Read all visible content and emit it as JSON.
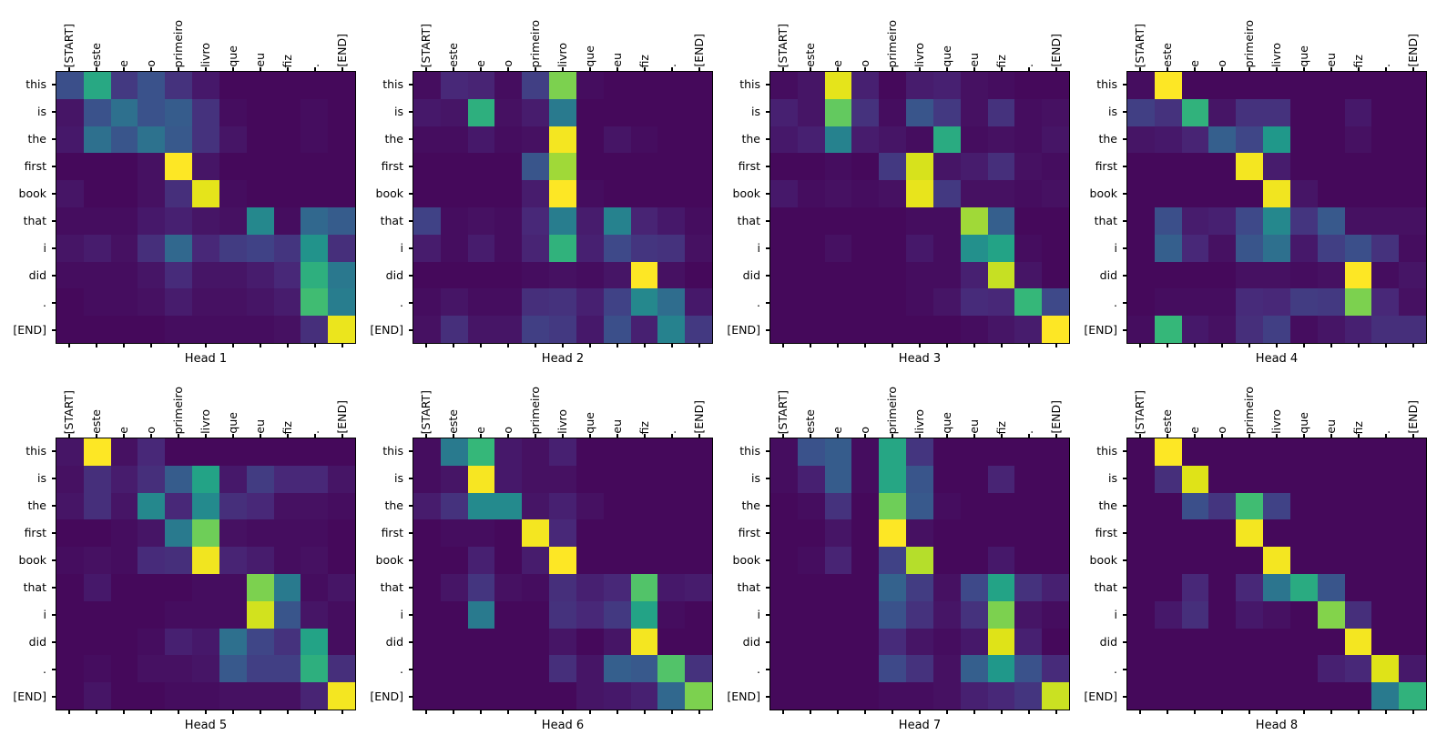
{
  "figure": {
    "background": "#ffffff",
    "layout": "2 rows x 4 columns of attention heatmaps"
  },
  "chart_data": {
    "type": "heatmap",
    "colormap": "viridis",
    "colormap_stops": [
      "#440154",
      "#482878",
      "#3e4989",
      "#31688e",
      "#26828e",
      "#1f9e89",
      "#35b779",
      "#6ece58",
      "#b5de2b",
      "#dfe318",
      "#fde725"
    ],
    "value_range": [
      0,
      1
    ],
    "grid": "off",
    "x_labels": [
      "[START]",
      "este",
      "e",
      "o",
      "primeiro",
      "livro",
      "que",
      "eu",
      "fiz",
      ".",
      "[END]"
    ],
    "y_labels": [
      "this",
      "is",
      "the",
      "first",
      "book",
      "that",
      "i",
      "did",
      ".",
      "[END]"
    ],
    "heads": [
      {
        "title": "Head 1",
        "values": [
          [
            0.22,
            0.54,
            0.15,
            0.23,
            0.13,
            0.06,
            0.02,
            0.02,
            0.02,
            0.02,
            0.02
          ],
          [
            0.05,
            0.23,
            0.33,
            0.23,
            0.26,
            0.13,
            0.03,
            0.02,
            0.02,
            0.03,
            0.02
          ],
          [
            0.06,
            0.33,
            0.24,
            0.34,
            0.25,
            0.13,
            0.05,
            0.02,
            0.02,
            0.03,
            0.02
          ],
          [
            0.02,
            0.02,
            0.02,
            0.04,
            1.0,
            0.05,
            0.02,
            0.02,
            0.02,
            0.02,
            0.02
          ],
          [
            0.05,
            0.02,
            0.02,
            0.04,
            0.12,
            0.92,
            0.03,
            0.02,
            0.02,
            0.02,
            0.02
          ],
          [
            0.03,
            0.03,
            0.03,
            0.06,
            0.08,
            0.05,
            0.04,
            0.42,
            0.03,
            0.3,
            0.26
          ],
          [
            0.05,
            0.07,
            0.04,
            0.12,
            0.3,
            0.1,
            0.16,
            0.18,
            0.14,
            0.46,
            0.12
          ],
          [
            0.03,
            0.03,
            0.03,
            0.05,
            0.11,
            0.05,
            0.05,
            0.07,
            0.1,
            0.57,
            0.36
          ],
          [
            0.02,
            0.03,
            0.03,
            0.04,
            0.07,
            0.04,
            0.04,
            0.05,
            0.07,
            0.62,
            0.38
          ],
          [
            0.02,
            0.02,
            0.02,
            0.02,
            0.03,
            0.03,
            0.03,
            0.03,
            0.04,
            0.12,
            0.94
          ]
        ]
      },
      {
        "title": "Head 2",
        "values": [
          [
            0.03,
            0.1,
            0.09,
            0.03,
            0.17,
            0.72,
            0.03,
            0.02,
            0.02,
            0.02,
            0.02
          ],
          [
            0.06,
            0.05,
            0.57,
            0.04,
            0.07,
            0.37,
            0.02,
            0.02,
            0.02,
            0.02,
            0.02
          ],
          [
            0.03,
            0.03,
            0.06,
            0.03,
            0.04,
            0.97,
            0.02,
            0.05,
            0.03,
            0.02,
            0.02
          ],
          [
            0.02,
            0.02,
            0.02,
            0.02,
            0.24,
            0.77,
            0.02,
            0.02,
            0.02,
            0.02,
            0.02
          ],
          [
            0.02,
            0.02,
            0.02,
            0.02,
            0.07,
            1.0,
            0.03,
            0.02,
            0.02,
            0.02,
            0.02
          ],
          [
            0.18,
            0.03,
            0.04,
            0.03,
            0.1,
            0.38,
            0.07,
            0.4,
            0.09,
            0.06,
            0.03
          ],
          [
            0.07,
            0.03,
            0.07,
            0.03,
            0.09,
            0.58,
            0.08,
            0.2,
            0.14,
            0.13,
            0.04
          ],
          [
            0.02,
            0.02,
            0.02,
            0.02,
            0.03,
            0.04,
            0.03,
            0.05,
            1.0,
            0.04,
            0.02
          ],
          [
            0.03,
            0.05,
            0.03,
            0.03,
            0.12,
            0.13,
            0.08,
            0.18,
            0.42,
            0.32,
            0.06
          ],
          [
            0.04,
            0.12,
            0.05,
            0.05,
            0.17,
            0.15,
            0.06,
            0.22,
            0.08,
            0.4,
            0.15
          ]
        ]
      },
      {
        "title": "Head 3",
        "values": [
          [
            0.03,
            0.05,
            0.92,
            0.08,
            0.02,
            0.07,
            0.08,
            0.04,
            0.03,
            0.02,
            0.02
          ],
          [
            0.08,
            0.05,
            0.68,
            0.13,
            0.03,
            0.24,
            0.15,
            0.04,
            0.13,
            0.03,
            0.04
          ],
          [
            0.06,
            0.08,
            0.4,
            0.07,
            0.05,
            0.03,
            0.55,
            0.03,
            0.04,
            0.03,
            0.05
          ],
          [
            0.02,
            0.02,
            0.03,
            0.02,
            0.15,
            0.88,
            0.05,
            0.07,
            0.12,
            0.04,
            0.03
          ],
          [
            0.06,
            0.03,
            0.04,
            0.03,
            0.04,
            0.93,
            0.15,
            0.04,
            0.04,
            0.03,
            0.04
          ],
          [
            0.02,
            0.02,
            0.02,
            0.02,
            0.02,
            0.03,
            0.03,
            0.77,
            0.27,
            0.02,
            0.02
          ],
          [
            0.02,
            0.02,
            0.04,
            0.02,
            0.02,
            0.06,
            0.03,
            0.45,
            0.52,
            0.03,
            0.02
          ],
          [
            0.02,
            0.02,
            0.02,
            0.02,
            0.02,
            0.03,
            0.03,
            0.08,
            0.84,
            0.05,
            0.02
          ],
          [
            0.02,
            0.02,
            0.02,
            0.02,
            0.02,
            0.03,
            0.05,
            0.11,
            0.1,
            0.6,
            0.2
          ],
          [
            0.02,
            0.02,
            0.02,
            0.02,
            0.02,
            0.02,
            0.02,
            0.03,
            0.05,
            0.07,
            1.0
          ]
        ]
      },
      {
        "title": "Head 4",
        "values": [
          [
            0.03,
            1.0,
            0.02,
            0.02,
            0.02,
            0.02,
            0.02,
            0.02,
            0.02,
            0.02,
            0.02
          ],
          [
            0.17,
            0.13,
            0.58,
            0.05,
            0.13,
            0.13,
            0.02,
            0.02,
            0.06,
            0.02,
            0.02
          ],
          [
            0.05,
            0.06,
            0.09,
            0.27,
            0.19,
            0.48,
            0.02,
            0.02,
            0.04,
            0.02,
            0.02
          ],
          [
            0.02,
            0.02,
            0.02,
            0.02,
            0.97,
            0.07,
            0.02,
            0.02,
            0.02,
            0.02,
            0.02
          ],
          [
            0.02,
            0.02,
            0.02,
            0.02,
            0.02,
            0.96,
            0.05,
            0.02,
            0.02,
            0.02,
            0.02
          ],
          [
            0.02,
            0.22,
            0.07,
            0.08,
            0.2,
            0.42,
            0.14,
            0.25,
            0.04,
            0.04,
            0.04
          ],
          [
            0.02,
            0.27,
            0.1,
            0.04,
            0.24,
            0.33,
            0.06,
            0.17,
            0.22,
            0.13,
            0.03
          ],
          [
            0.02,
            0.02,
            0.02,
            0.02,
            0.04,
            0.04,
            0.03,
            0.04,
            1.0,
            0.03,
            0.05
          ],
          [
            0.02,
            0.03,
            0.03,
            0.03,
            0.11,
            0.1,
            0.16,
            0.15,
            0.72,
            0.1,
            0.04
          ],
          [
            0.03,
            0.6,
            0.06,
            0.04,
            0.12,
            0.17,
            0.03,
            0.05,
            0.08,
            0.12,
            0.12
          ]
        ]
      },
      {
        "title": "Head 5",
        "values": [
          [
            0.05,
            1.0,
            0.04,
            0.1,
            0.02,
            0.02,
            0.02,
            0.02,
            0.02,
            0.02,
            0.02
          ],
          [
            0.04,
            0.12,
            0.07,
            0.12,
            0.26,
            0.52,
            0.06,
            0.16,
            0.1,
            0.1,
            0.05
          ],
          [
            0.05,
            0.12,
            0.05,
            0.42,
            0.1,
            0.43,
            0.12,
            0.1,
            0.04,
            0.04,
            0.03
          ],
          [
            0.02,
            0.02,
            0.03,
            0.05,
            0.37,
            0.7,
            0.04,
            0.03,
            0.03,
            0.03,
            0.02
          ],
          [
            0.03,
            0.04,
            0.03,
            0.11,
            0.12,
            0.96,
            0.09,
            0.07,
            0.03,
            0.04,
            0.02
          ],
          [
            0.02,
            0.06,
            0.02,
            0.02,
            0.02,
            0.03,
            0.03,
            0.72,
            0.37,
            0.03,
            0.05
          ],
          [
            0.02,
            0.02,
            0.02,
            0.02,
            0.03,
            0.03,
            0.03,
            0.87,
            0.24,
            0.05,
            0.03
          ],
          [
            0.02,
            0.02,
            0.02,
            0.03,
            0.08,
            0.06,
            0.33,
            0.19,
            0.13,
            0.52,
            0.03
          ],
          [
            0.02,
            0.03,
            0.02,
            0.04,
            0.04,
            0.05,
            0.25,
            0.17,
            0.17,
            0.57,
            0.12
          ],
          [
            0.02,
            0.05,
            0.02,
            0.02,
            0.03,
            0.03,
            0.04,
            0.04,
            0.04,
            0.09,
            0.97
          ]
        ]
      },
      {
        "title": "Head 6",
        "values": [
          [
            0.03,
            0.37,
            0.6,
            0.06,
            0.04,
            0.08,
            0.02,
            0.02,
            0.02,
            0.02,
            0.02
          ],
          [
            0.03,
            0.05,
            0.98,
            0.06,
            0.04,
            0.04,
            0.02,
            0.02,
            0.02,
            0.02,
            0.02
          ],
          [
            0.07,
            0.13,
            0.43,
            0.43,
            0.05,
            0.08,
            0.04,
            0.02,
            0.02,
            0.02,
            0.02
          ],
          [
            0.02,
            0.03,
            0.03,
            0.02,
            0.97,
            0.1,
            0.02,
            0.02,
            0.02,
            0.02,
            0.02
          ],
          [
            0.02,
            0.02,
            0.08,
            0.02,
            0.07,
            1.0,
            0.02,
            0.02,
            0.02,
            0.02,
            0.02
          ],
          [
            0.02,
            0.05,
            0.14,
            0.04,
            0.03,
            0.12,
            0.08,
            0.1,
            0.65,
            0.06,
            0.07
          ],
          [
            0.02,
            0.02,
            0.37,
            0.02,
            0.02,
            0.13,
            0.1,
            0.15,
            0.52,
            0.03,
            0.02
          ],
          [
            0.02,
            0.02,
            0.02,
            0.02,
            0.02,
            0.05,
            0.02,
            0.05,
            0.97,
            0.02,
            0.02
          ],
          [
            0.02,
            0.02,
            0.02,
            0.02,
            0.02,
            0.12,
            0.05,
            0.27,
            0.25,
            0.65,
            0.13
          ],
          [
            0.02,
            0.02,
            0.02,
            0.02,
            0.02,
            0.02,
            0.05,
            0.06,
            0.08,
            0.3,
            0.72
          ]
        ]
      },
      {
        "title": "Head 7",
        "values": [
          [
            0.03,
            0.23,
            0.26,
            0.03,
            0.53,
            0.14,
            0.02,
            0.02,
            0.02,
            0.02,
            0.02
          ],
          [
            0.03,
            0.08,
            0.26,
            0.03,
            0.53,
            0.24,
            0.02,
            0.02,
            0.09,
            0.02,
            0.02
          ],
          [
            0.02,
            0.03,
            0.13,
            0.02,
            0.7,
            0.25,
            0.03,
            0.02,
            0.02,
            0.02,
            0.02
          ],
          [
            0.02,
            0.02,
            0.05,
            0.02,
            1.0,
            0.04,
            0.02,
            0.02,
            0.02,
            0.02,
            0.02
          ],
          [
            0.02,
            0.03,
            0.09,
            0.02,
            0.18,
            0.8,
            0.02,
            0.02,
            0.06,
            0.02,
            0.02
          ],
          [
            0.02,
            0.02,
            0.02,
            0.02,
            0.28,
            0.16,
            0.04,
            0.2,
            0.52,
            0.13,
            0.08
          ],
          [
            0.02,
            0.02,
            0.02,
            0.02,
            0.23,
            0.13,
            0.05,
            0.13,
            0.72,
            0.05,
            0.03
          ],
          [
            0.02,
            0.02,
            0.02,
            0.02,
            0.11,
            0.05,
            0.03,
            0.06,
            0.9,
            0.08,
            0.02
          ],
          [
            0.02,
            0.02,
            0.02,
            0.02,
            0.2,
            0.13,
            0.04,
            0.27,
            0.48,
            0.23,
            0.11
          ],
          [
            0.02,
            0.02,
            0.02,
            0.02,
            0.03,
            0.03,
            0.04,
            0.08,
            0.1,
            0.14,
            0.85
          ]
        ]
      },
      {
        "title": "Head 8",
        "values": [
          [
            0.02,
            1.0,
            0.02,
            0.02,
            0.02,
            0.02,
            0.02,
            0.02,
            0.02,
            0.02,
            0.02
          ],
          [
            0.02,
            0.12,
            0.9,
            0.02,
            0.02,
            0.02,
            0.02,
            0.02,
            0.02,
            0.02,
            0.02
          ],
          [
            0.02,
            0.02,
            0.22,
            0.14,
            0.62,
            0.18,
            0.02,
            0.02,
            0.02,
            0.02,
            0.02
          ],
          [
            0.02,
            0.02,
            0.02,
            0.02,
            0.97,
            0.02,
            0.02,
            0.02,
            0.02,
            0.02,
            0.02
          ],
          [
            0.02,
            0.02,
            0.02,
            0.02,
            0.02,
            0.97,
            0.02,
            0.02,
            0.02,
            0.02,
            0.02
          ],
          [
            0.02,
            0.02,
            0.1,
            0.02,
            0.1,
            0.35,
            0.55,
            0.24,
            0.02,
            0.02,
            0.02
          ],
          [
            0.02,
            0.06,
            0.12,
            0.02,
            0.06,
            0.04,
            0.02,
            0.73,
            0.12,
            0.02,
            0.02
          ],
          [
            0.02,
            0.02,
            0.02,
            0.02,
            0.02,
            0.02,
            0.02,
            0.02,
            0.97,
            0.02,
            0.02
          ],
          [
            0.02,
            0.02,
            0.02,
            0.02,
            0.02,
            0.02,
            0.02,
            0.08,
            0.1,
            0.9,
            0.06
          ],
          [
            0.02,
            0.02,
            0.02,
            0.02,
            0.02,
            0.02,
            0.02,
            0.02,
            0.02,
            0.37,
            0.58
          ]
        ]
      }
    ]
  }
}
